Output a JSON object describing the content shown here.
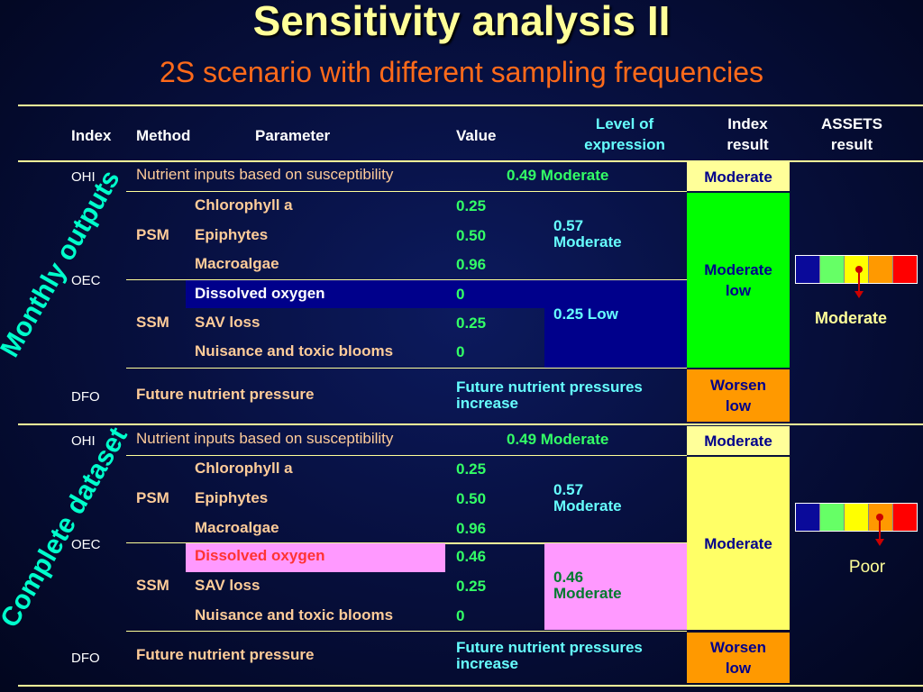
{
  "title": "Sensitivity analysis II",
  "subtitle": "2S scenario with different sampling frequencies",
  "header": {
    "index": "Index",
    "method": "Method",
    "parameter": "Parameter",
    "value": "Value",
    "level": "Level of expression",
    "index_result": "Index result",
    "assets_result": "ASSETS result"
  },
  "monthly": {
    "label": "Monthly outputs",
    "ohi_index": "OHI",
    "ohi_param": "Nutrient inputs based on susceptibility",
    "ohi_value": "0.49 Moderate",
    "ohi_result": "Moderate",
    "oec_index": "OEC",
    "psm_method": "PSM",
    "psm_rows": [
      {
        "param": "Chlorophyll a",
        "value": "0.25"
      },
      {
        "param": "Epiphytes",
        "value": "0.50"
      },
      {
        "param": "Macroalgae",
        "value": "0.96"
      }
    ],
    "psm_level": "0.57 Moderate",
    "ssm_method": "SSM",
    "ssm_rows": [
      {
        "param": "Dissolved oxygen",
        "value": "0"
      },
      {
        "param": "SAV loss",
        "value": "0.25"
      },
      {
        "param": "Nuisance and toxic blooms",
        "value": "0"
      }
    ],
    "ssm_level": "0.25 Low",
    "oec_result": "Moderate low",
    "dfo_index": "DFO",
    "dfo_param": "Future nutrient pressure",
    "dfo_value": "Future nutrient pressures increase",
    "dfo_result": "Worsen low",
    "assets_result": "Moderate",
    "assets_scale": [
      "#0a0a9a",
      "#66ff66",
      "#ffff00",
      "#ff9900",
      "#ff0000"
    ]
  },
  "complete": {
    "label": "Complete dataset",
    "ohi_index": "OHI",
    "ohi_param": "Nutrient inputs based on susceptibility",
    "ohi_value": "0.49 Moderate",
    "ohi_result": "Moderate",
    "oec_index": "OEC",
    "psm_method": "PSM",
    "psm_rows": [
      {
        "param": "Chlorophyll a",
        "value": "0.25"
      },
      {
        "param": "Epiphytes",
        "value": "0.50"
      },
      {
        "param": "Macroalgae",
        "value": "0.96"
      }
    ],
    "psm_level": "0.57 Moderate",
    "ssm_method": "SSM",
    "ssm_rows": [
      {
        "param": "Dissolved oxygen",
        "value": "0.46"
      },
      {
        "param": "SAV loss",
        "value": "0.25"
      },
      {
        "param": "Nuisance and toxic blooms",
        "value": "0"
      }
    ],
    "ssm_level": "0.46 Moderate",
    "oec_result": "Moderate",
    "dfo_index": "DFO",
    "dfo_param": "Future nutrient pressure",
    "dfo_value": "Future nutrient pressures increase",
    "dfo_result": "Worsen low",
    "assets_result": "Poor",
    "assets_scale": [
      "#0a0a9a",
      "#66ff66",
      "#ffff00",
      "#ff9900",
      "#ff0000"
    ]
  },
  "colors": {
    "title": "#ffff99",
    "subtitle": "#ff6a1a",
    "result_yellow": "#ffff99",
    "result_green": "#00ff00",
    "result_orange": "#ff9900",
    "ssm_monthly_bg": "#00008b",
    "ssm_complete_bg": "#ff99ff",
    "marker": "#cc0000"
  }
}
